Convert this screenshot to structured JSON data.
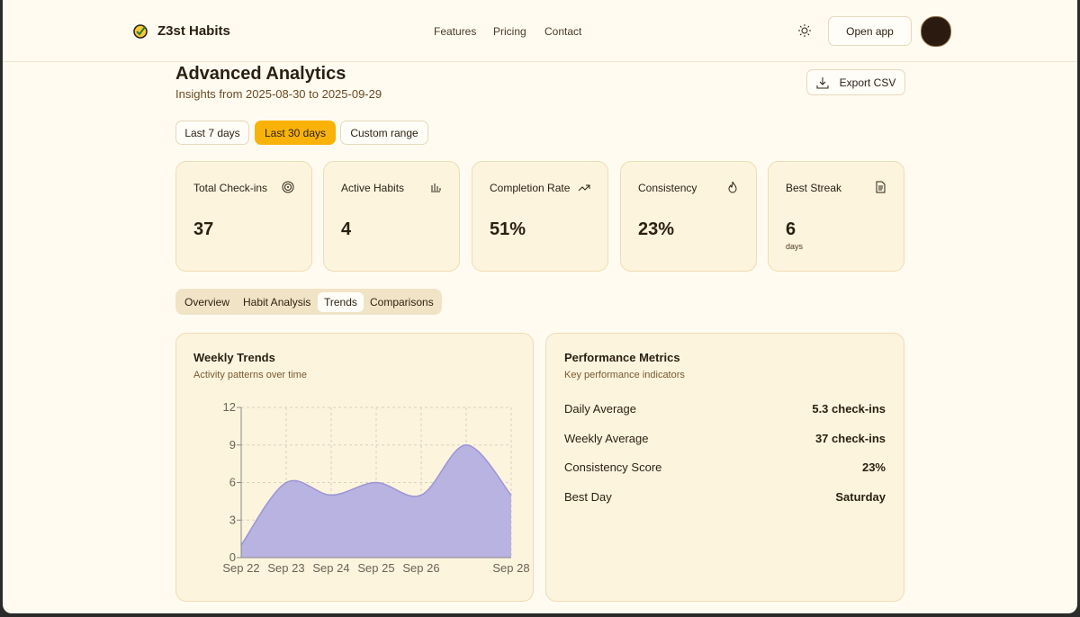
{
  "nav": {
    "brand": "Z3st Habits",
    "links": [
      "Features",
      "Pricing",
      "Contact"
    ],
    "open_app": "Open app"
  },
  "page": {
    "title": "Advanced Analytics",
    "subtitle": "Insights from 2025-08-30 to 2025-09-29",
    "export": "Export CSV"
  },
  "ranges": [
    "Last 7 days",
    "Last 30 days",
    "Custom range"
  ],
  "stats": [
    {
      "label": "Total Check-ins",
      "value": "37"
    },
    {
      "label": "Active Habits",
      "value": "4"
    },
    {
      "label": "Completion Rate",
      "value": "51%"
    },
    {
      "label": "Consistency",
      "value": "23%"
    },
    {
      "label": "Best Streak",
      "value": "6",
      "unit": "days"
    }
  ],
  "tabs": [
    "Overview",
    "Habit Analysis",
    "Trends",
    "Comparisons"
  ],
  "chart_data": {
    "type": "area",
    "title": "Weekly Trends",
    "subtitle": "Activity patterns over time",
    "categories": [
      "Sep 22",
      "Sep 23",
      "Sep 24",
      "Sep 25",
      "Sep 26",
      null,
      "Sep 28"
    ],
    "values": [
      1,
      6,
      5,
      6,
      5,
      9,
      5
    ],
    "color": "#b4afe0",
    "ylim": [
      0,
      12
    ],
    "yticks": [
      0,
      3,
      6,
      9,
      12
    ],
    "grid": true
  },
  "metrics": {
    "title": "Performance Metrics",
    "subtitle": "Key performance indicators",
    "rows": [
      [
        "Daily Average",
        "5.3 check-ins"
      ],
      [
        "Weekly Average",
        "37 check-ins"
      ],
      [
        "Consistency Score",
        "23%"
      ],
      [
        "Best Day",
        "Saturday"
      ]
    ]
  }
}
